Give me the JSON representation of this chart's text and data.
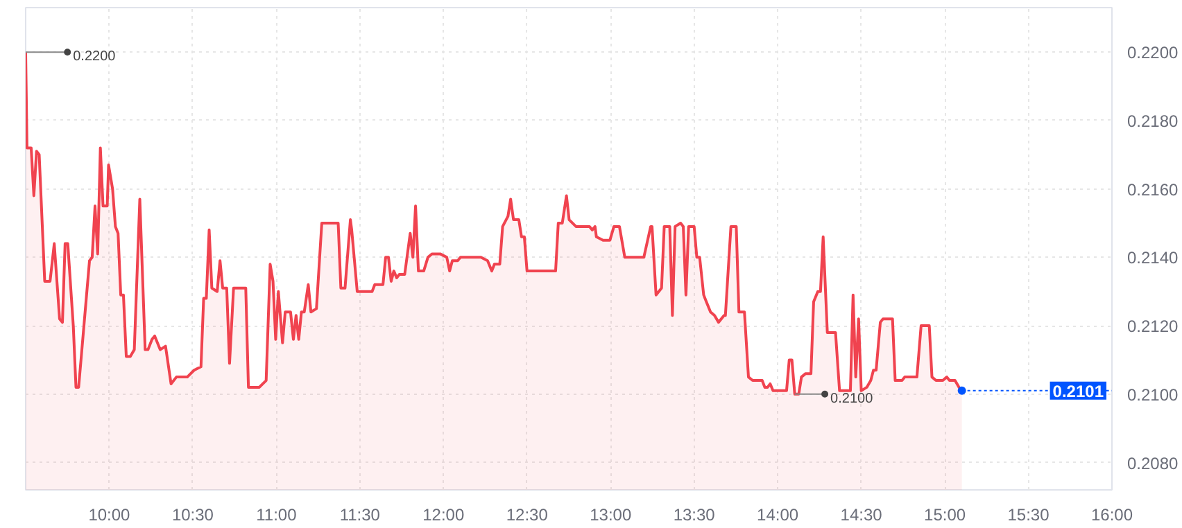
{
  "chart_data": {
    "type": "area",
    "x": [
      9.5,
      9.508,
      9.533,
      9.549,
      9.565,
      9.581,
      9.614,
      9.646,
      9.671,
      9.703,
      9.72,
      9.736,
      9.752,
      9.785,
      9.801,
      9.817,
      9.882,
      9.898,
      9.915,
      9.931,
      9.947,
      9.963,
      9.988,
      9.996,
      10.02,
      10.037,
      10.053,
      10.069,
      10.085,
      10.102,
      10.126,
      10.15,
      10.183,
      10.215,
      10.232,
      10.256,
      10.272,
      10.305,
      10.337,
      10.37,
      10.402,
      10.467,
      10.508,
      10.549,
      10.565,
      10.581,
      10.598,
      10.614,
      10.646,
      10.663,
      10.679,
      10.703,
      10.72,
      10.744,
      10.817,
      10.833,
      10.898,
      10.939,
      10.963,
      10.98,
      10.996,
      11.012,
      11.037,
      11.053,
      11.085,
      11.102,
      11.118,
      11.134,
      11.15,
      11.167,
      11.191,
      11.207,
      11.24,
      11.272,
      11.37,
      11.386,
      11.411,
      11.443,
      11.451,
      11.484,
      11.573,
      11.589,
      11.638,
      11.654,
      11.671,
      11.687,
      11.703,
      11.72,
      11.736,
      11.768,
      11.801,
      11.817,
      11.833,
      11.85,
      11.882,
      11.907,
      11.931,
      11.98,
      12.02,
      12.037,
      12.053,
      12.085,
      12.102,
      12.224,
      12.264,
      12.289,
      12.305,
      12.337,
      12.354,
      12.386,
      12.402,
      12.419,
      12.451,
      12.467,
      12.484,
      12.5,
      12.671,
      12.687,
      12.711,
      12.736,
      12.752,
      12.793,
      12.874,
      12.89,
      12.907,
      12.915,
      12.955,
      12.996,
      13.02,
      13.053,
      13.085,
      13.199,
      13.24,
      13.248,
      13.272,
      13.305,
      13.321,
      13.354,
      13.37,
      13.386,
      13.419,
      13.435,
      13.451,
      13.467,
      13.5,
      13.516,
      13.533,
      13.557,
      13.573,
      13.598,
      13.622,
      13.646,
      13.679,
      13.687,
      13.72,
      13.752,
      13.768,
      13.801,
      13.825,
      13.85,
      13.907,
      13.923,
      13.939,
      13.955,
      13.972,
      14.053,
      14.069,
      14.085,
      14.102,
      14.126,
      14.142,
      14.167,
      14.199,
      14.215,
      14.24,
      14.256,
      14.272,
      14.297,
      14.346,
      14.37,
      14.435,
      14.451,
      14.467,
      14.484,
      14.5,
      14.533,
      14.557,
      14.573,
      14.589,
      14.614,
      14.63,
      14.687,
      14.703,
      14.744,
      14.76,
      14.833,
      14.858,
      14.907,
      14.923,
      14.947,
      14.988,
      15.012,
      15.028,
      15.061,
      15.085,
      15.102
    ],
    "series": [
      {
        "color": "#f0434f",
        "values": [
          0.22,
          0.2172,
          0.2172,
          0.2158,
          0.2171,
          0.217,
          0.2133,
          0.2133,
          0.2144,
          0.2122,
          0.2121,
          0.2144,
          0.2144,
          0.212,
          0.2102,
          0.2102,
          0.2139,
          0.214,
          0.2155,
          0.2141,
          0.2172,
          0.2155,
          0.2155,
          0.2167,
          0.216,
          0.2149,
          0.2147,
          0.2129,
          0.2129,
          0.2111,
          0.2111,
          0.2113,
          0.2157,
          0.2113,
          0.2113,
          0.2116,
          0.2117,
          0.2113,
          0.2114,
          0.2103,
          0.2105,
          0.2105,
          0.2107,
          0.2108,
          0.2128,
          0.2128,
          0.2148,
          0.2131,
          0.213,
          0.2139,
          0.2131,
          0.2131,
          0.2109,
          0.2131,
          0.2131,
          0.2102,
          0.2102,
          0.2104,
          0.2138,
          0.2133,
          0.2116,
          0.213,
          0.2115,
          0.2124,
          0.2124,
          0.2116,
          0.2123,
          0.2116,
          0.2124,
          0.2124,
          0.2132,
          0.2124,
          0.2125,
          0.215,
          0.215,
          0.2131,
          0.2131,
          0.2151,
          0.2148,
          0.213,
          0.213,
          0.2132,
          0.2132,
          0.214,
          0.214,
          0.2133,
          0.2136,
          0.2134,
          0.2135,
          0.2135,
          0.2147,
          0.214,
          0.2155,
          0.2136,
          0.2136,
          0.214,
          0.2141,
          0.2141,
          0.214,
          0.2136,
          0.2139,
          0.2139,
          0.214,
          0.214,
          0.2139,
          0.2136,
          0.2138,
          0.2138,
          0.2149,
          0.2152,
          0.2157,
          0.2151,
          0.2151,
          0.2146,
          0.2146,
          0.2136,
          0.2136,
          0.215,
          0.215,
          0.2158,
          0.2151,
          0.2149,
          0.2149,
          0.2148,
          0.2149,
          0.2146,
          0.2145,
          0.2145,
          0.2149,
          0.2149,
          0.214,
          0.214,
          0.2149,
          0.2149,
          0.2129,
          0.2131,
          0.2149,
          0.2149,
          0.2123,
          0.2149,
          0.215,
          0.2149,
          0.2129,
          0.2149,
          0.2149,
          0.214,
          0.214,
          0.2129,
          0.2127,
          0.2124,
          0.2123,
          0.2121,
          0.2123,
          0.2123,
          0.2149,
          0.2149,
          0.2124,
          0.2124,
          0.2105,
          0.2104,
          0.2104,
          0.2102,
          0.2102,
          0.2103,
          0.2101,
          0.2101,
          0.211,
          0.211,
          0.21,
          0.21,
          0.2105,
          0.2106,
          0.2106,
          0.2127,
          0.213,
          0.213,
          0.2146,
          0.2118,
          0.2118,
          0.2101,
          0.2101,
          0.2129,
          0.2105,
          0.2122,
          0.2101,
          0.2102,
          0.2104,
          0.2107,
          0.2107,
          0.2121,
          0.2122,
          0.2122,
          0.2104,
          0.2104,
          0.2105,
          0.2105,
          0.212,
          0.212,
          0.2105,
          0.2104,
          0.2104,
          0.2105,
          0.2104,
          0.2104,
          0.2102,
          0.2101
        ]
      }
    ],
    "xlim": [
      9.5,
      16.0
    ],
    "ylim": [
      0.2072,
      0.2213
    ],
    "xticks": [
      {
        "value": 10,
        "label": "10:00"
      },
      {
        "value": 10.5,
        "label": "10:30"
      },
      {
        "value": 11,
        "label": "11:00"
      },
      {
        "value": 11.5,
        "label": "11:30"
      },
      {
        "value": 12,
        "label": "12:00"
      },
      {
        "value": 12.5,
        "label": "12:30"
      },
      {
        "value": 13,
        "label": "13:00"
      },
      {
        "value": 13.5,
        "label": "13:30"
      },
      {
        "value": 14,
        "label": "14:00"
      },
      {
        "value": 14.5,
        "label": "14:30"
      },
      {
        "value": 15,
        "label": "15:00"
      },
      {
        "value": 15.5,
        "label": "15:30"
      },
      {
        "value": 16,
        "label": "16:00"
      }
    ],
    "yticks": [
      {
        "value": 0.208,
        "label": "0.2080"
      },
      {
        "value": 0.21,
        "label": "0.2100"
      },
      {
        "value": 0.212,
        "label": "0.2120"
      },
      {
        "value": 0.214,
        "label": "0.2140"
      },
      {
        "value": 0.216,
        "label": "0.2160"
      },
      {
        "value": 0.218,
        "label": "0.2180"
      },
      {
        "value": 0.22,
        "label": "0.2200"
      }
    ],
    "grid": true,
    "annotations": [
      {
        "text": "0.2200",
        "x": 9.5,
        "y": 0.22
      },
      {
        "text": "0.2100",
        "x": 14.102,
        "y": 0.21
      }
    ],
    "ref_lines": [
      {
        "axis": "y",
        "value": 0.2101,
        "label": "0.2101",
        "color": "#0055ff",
        "line_style": "dotted"
      }
    ]
  }
}
